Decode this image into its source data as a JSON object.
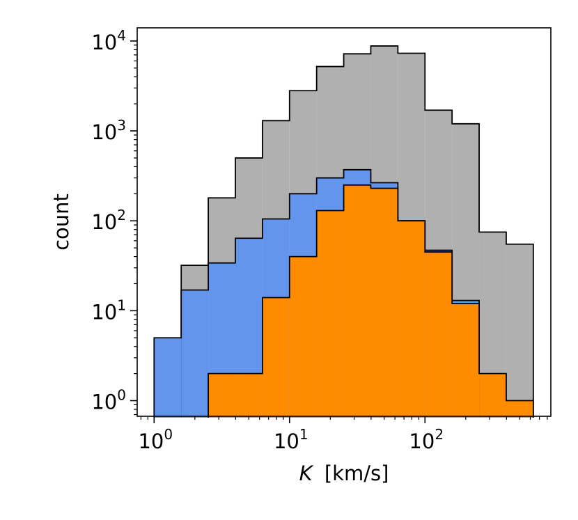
{
  "chart_data": {
    "type": "histogram",
    "title": "",
    "xlabel": {
      "symbol": "K",
      "unit": "[km/s]"
    },
    "ylabel": "count",
    "x_scale": "log",
    "y_scale": "log",
    "xlim": [
      0.75,
      850
    ],
    "ylim": [
      0.67,
      14000
    ],
    "grid": false,
    "legend": "none",
    "x_ticks": [
      {
        "base": "10",
        "exp": "0",
        "value": 1
      },
      {
        "base": "10",
        "exp": "1",
        "value": 10
      },
      {
        "base": "10",
        "exp": "2",
        "value": 100
      }
    ],
    "y_ticks": [
      {
        "base": "10",
        "exp": "0",
        "value": 1
      },
      {
        "base": "10",
        "exp": "1",
        "value": 10
      },
      {
        "base": "10",
        "exp": "2",
        "value": 100
      },
      {
        "base": "10",
        "exp": "3",
        "value": 1000
      },
      {
        "base": "10",
        "exp": "4",
        "value": 10000
      }
    ],
    "bin_edges": [
      1.0,
      1.585,
      2.512,
      3.981,
      6.31,
      10.0,
      15.85,
      25.12,
      39.81,
      63.1,
      100.0,
      158.5,
      251.2,
      398.1,
      631.0
    ],
    "series": [
      {
        "color": "#b0b0b0",
        "values": [
          0,
          32,
          180,
          500,
          1300,
          2800,
          5200,
          7200,
          8800,
          7300,
          1700,
          1200,
          75,
          55
        ]
      },
      {
        "color": "#6495ed",
        "values": [
          5,
          17,
          34,
          64,
          105,
          200,
          300,
          370,
          265,
          100,
          47,
          13,
          0,
          0
        ]
      },
      {
        "color": "#ff8c00",
        "values": [
          0,
          0,
          2,
          2,
          14,
          40,
          130,
          250,
          230,
          100,
          45,
          12,
          2,
          1
        ]
      }
    ]
  }
}
